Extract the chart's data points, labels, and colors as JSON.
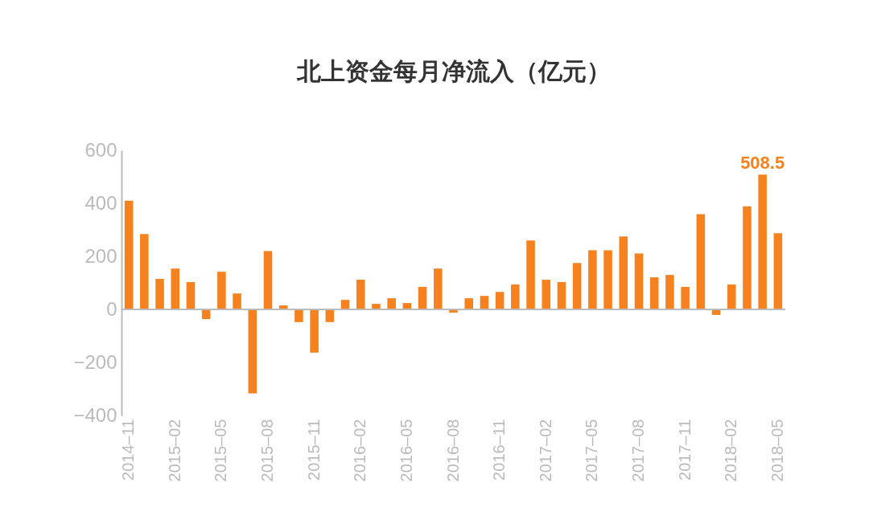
{
  "chart_data": {
    "type": "bar",
    "title": "北上资金每月净流入（亿元）",
    "categories": [
      "2014–11",
      null,
      null,
      "2015–02",
      null,
      null,
      "2015–05",
      null,
      null,
      "2015–08",
      null,
      null,
      "2015–11",
      null,
      null,
      "2016–02",
      null,
      null,
      "2016–05",
      null,
      null,
      "2016–08",
      null,
      null,
      "2016–11",
      null,
      null,
      "2017–02",
      null,
      null,
      "2017–05",
      null,
      null,
      "2017–08",
      null,
      null,
      "2017–11",
      null,
      null,
      "2018–02",
      null,
      null,
      "2018–05"
    ],
    "values": [
      410,
      284,
      115,
      154,
      103,
      -36,
      142,
      60,
      -317,
      220,
      15,
      -48,
      -163,
      -48,
      36,
      112,
      21,
      42,
      24,
      85,
      154,
      -12,
      42,
      51,
      66,
      94,
      260,
      112,
      103,
      175,
      223,
      223,
      275,
      211,
      121,
      130,
      85,
      359,
      -21,
      94,
      389,
      508.5,
      287
    ],
    "value_labels": [
      null,
      null,
      null,
      null,
      null,
      null,
      null,
      null,
      null,
      null,
      null,
      null,
      null,
      null,
      null,
      null,
      null,
      null,
      null,
      null,
      null,
      null,
      null,
      null,
      null,
      null,
      null,
      null,
      null,
      null,
      null,
      null,
      null,
      null,
      null,
      null,
      null,
      null,
      null,
      null,
      null,
      "508.5",
      null
    ],
    "color": "#f5821f",
    "ylim": [
      -400,
      600
    ],
    "yticks": [
      -400,
      -200,
      0,
      200,
      400,
      600
    ],
    "grid": false,
    "ref_lines": [
      {
        "axis": "y",
        "value": 0,
        "color": "#bbbbbb"
      }
    ]
  }
}
